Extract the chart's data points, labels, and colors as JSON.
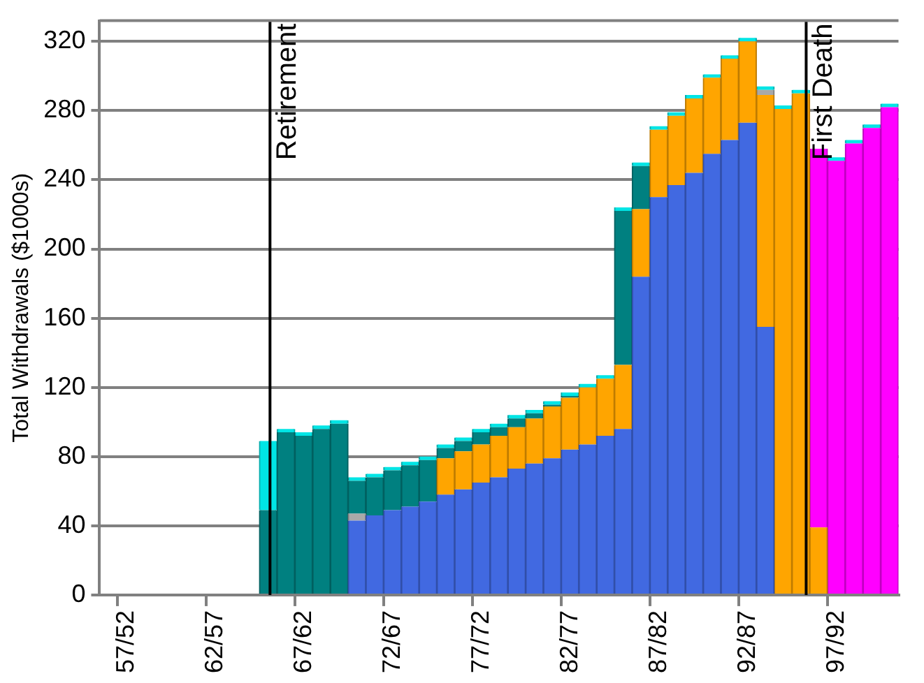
{
  "chart_data": {
    "type": "bar",
    "stacked": true,
    "ylabel": "Total Withdrawals ($1000s)",
    "categories": [
      null,
      "57/52",
      null,
      null,
      null,
      null,
      "62/57",
      null,
      null,
      null,
      null,
      "67/62",
      null,
      null,
      null,
      null,
      "72/67",
      null,
      null,
      null,
      null,
      "77/72",
      null,
      null,
      null,
      null,
      "82/77",
      null,
      null,
      null,
      null,
      "87/82",
      null,
      null,
      null,
      null,
      "92/87",
      null,
      null,
      null,
      null,
      "97/92",
      null,
      null,
      null
    ],
    "series": [
      {
        "color": "#4169e1",
        "values": [
          null,
          null,
          null,
          null,
          null,
          null,
          null,
          null,
          null,
          null,
          null,
          null,
          null,
          null,
          43,
          46,
          49,
          51,
          54,
          58,
          61,
          65,
          68,
          73,
          76,
          79,
          84,
          87,
          92,
          96,
          184,
          230,
          237,
          244,
          255,
          263,
          273,
          155,
          null,
          null,
          null,
          null,
          null,
          null,
          null
        ]
      },
      {
        "color": "#ffa500",
        "values": [
          null,
          null,
          null,
          null,
          null,
          null,
          null,
          null,
          null,
          null,
          null,
          null,
          null,
          null,
          null,
          null,
          null,
          null,
          null,
          21,
          22,
          22,
          24,
          24,
          26,
          30,
          30,
          33,
          33,
          37,
          39,
          39,
          40,
          43,
          44,
          47,
          47,
          134,
          281,
          290,
          39,
          null,
          null,
          null,
          null
        ]
      },
      {
        "color": "#a9a9a9",
        "values": [
          null,
          null,
          null,
          null,
          null,
          null,
          null,
          null,
          null,
          null,
          null,
          null,
          null,
          null,
          4,
          null,
          null,
          null,
          null,
          null,
          null,
          null,
          null,
          null,
          null,
          null,
          null,
          null,
          null,
          null,
          null,
          null,
          null,
          null,
          null,
          null,
          null,
          3,
          null,
          null,
          null,
          null,
          null,
          null,
          null
        ]
      },
      {
        "color": "#ff00ff",
        "values": [
          null,
          null,
          null,
          null,
          null,
          null,
          null,
          null,
          null,
          null,
          null,
          null,
          null,
          null,
          null,
          null,
          null,
          null,
          null,
          null,
          null,
          null,
          null,
          null,
          null,
          null,
          null,
          null,
          null,
          null,
          null,
          null,
          null,
          null,
          null,
          null,
          null,
          null,
          null,
          null,
          219,
          251,
          261,
          270,
          282
        ]
      },
      {
        "color": "#008080",
        "values": [
          0,
          0,
          0,
          0,
          0,
          0,
          0,
          0,
          0,
          49,
          94,
          92,
          96,
          99,
          19,
          22,
          23,
          24,
          24,
          6,
          6,
          7,
          5,
          5,
          3,
          1,
          1,
          null,
          null,
          89,
          25,
          null,
          null,
          null,
          null,
          null,
          null,
          null,
          null,
          null,
          null,
          null,
          null,
          null,
          null
        ]
      },
      {
        "color": "#00e5e5",
        "values": [
          null,
          null,
          null,
          null,
          null,
          null,
          null,
          null,
          null,
          40,
          2,
          2,
          2,
          2,
          2,
          2,
          2,
          2,
          2,
          2,
          2,
          2,
          2,
          2,
          2,
          2,
          2,
          2,
          2,
          2,
          2,
          2,
          2,
          2,
          2,
          2,
          2,
          2,
          2,
          2,
          null,
          2,
          2,
          2,
          2
        ]
      }
    ],
    "ylim": [
      0,
      332
    ],
    "yticks": [
      0,
      40,
      80,
      120,
      160,
      200,
      240,
      280,
      320
    ],
    "grid": "y",
    "legend": false,
    "annotations": [
      "Retirement",
      "First Death"
    ]
  }
}
